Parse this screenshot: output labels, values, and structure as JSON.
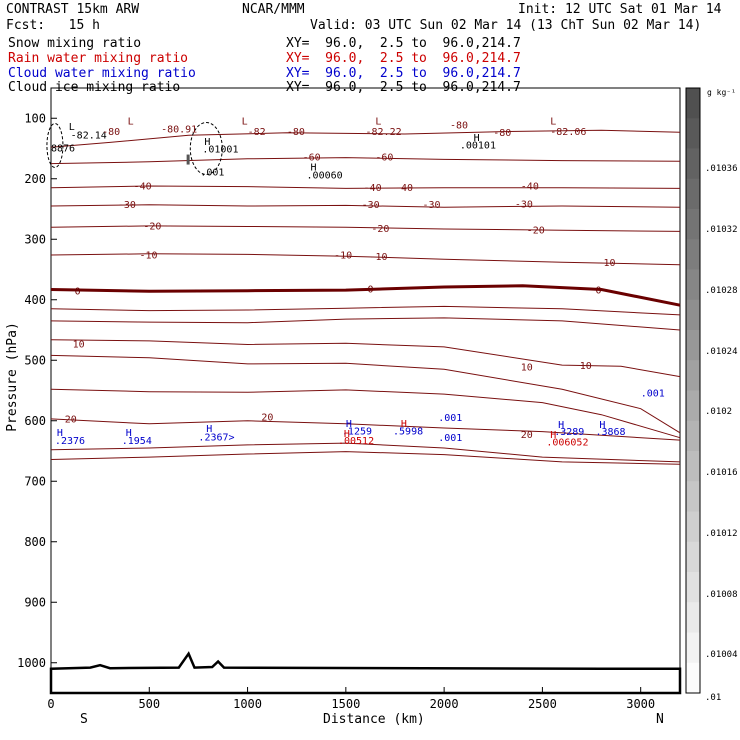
{
  "header": {
    "left1": "CONTRAST 15km ARW",
    "left2": "Fcst:   15 h",
    "center": "NCAR/MMM",
    "init": "Init: 12 UTC Sat 01 Mar 14",
    "valid": "Valid: 03 UTC Sun 02 Mar 14 (13 ChT Sun 02 Mar 14)"
  },
  "fields": [
    {
      "name": "Snow mixing ratio",
      "xy": "XY=  96.0,  2.5 to  96.0,214.7",
      "color": "#000000"
    },
    {
      "name": "Rain water mixing ratio",
      "xy": "XY=  96.0,  2.5 to  96.0,214.7",
      "color": "#cc0000"
    },
    {
      "name": "Cloud water mixing ratio",
      "xy": "XY=  96.0,  2.5 to  96.0,214.7",
      "color": "#0000cc"
    },
    {
      "name": "Cloud ice mixing ratio",
      "xy": "XY=  96.0,  2.5 to  96.0,214.7",
      "color": "#000000"
    }
  ],
  "chart_data": {
    "type": "contour",
    "xlabel": "Distance (km)",
    "ylabel": "Pressure (hPa)",
    "xlim": [
      0,
      3200
    ],
    "ylim": [
      1050,
      50
    ],
    "xticks": [
      0,
      500,
      1000,
      1500,
      2000,
      2500,
      3000
    ],
    "yticks": [
      100,
      200,
      300,
      400,
      500,
      600,
      700,
      800,
      900,
      1000
    ],
    "end_labels": {
      "left": "S",
      "right": "N"
    },
    "colorbar": {
      "unit": "g kg⁻¹",
      "labels": [
        ".01036",
        ".01032",
        ".01028",
        ".01024",
        ".0102",
        ".01016",
        ".01012",
        ".01008",
        ".01004",
        ".01"
      ]
    },
    "temperature_contours": [
      {
        "level": "-80",
        "color": "#7a1010",
        "points": [
          [
            0,
            148
          ],
          [
            300,
            140
          ],
          [
            700,
            128
          ],
          [
            1200,
            124
          ],
          [
            1800,
            126
          ],
          [
            2300,
            122
          ],
          [
            2800,
            120
          ],
          [
            3200,
            123
          ]
        ]
      },
      {
        "level": "-60",
        "color": "#7a1010",
        "points": [
          [
            0,
            175
          ],
          [
            500,
            172
          ],
          [
            1000,
            167
          ],
          [
            1500,
            165
          ],
          [
            2000,
            168
          ],
          [
            2600,
            170
          ],
          [
            3200,
            171
          ]
        ]
      },
      {
        "level": "-40",
        "color": "#7a1010",
        "points": [
          [
            0,
            215
          ],
          [
            500,
            212
          ],
          [
            1000,
            213
          ],
          [
            1500,
            216
          ],
          [
            2000,
            215
          ],
          [
            2600,
            215
          ],
          [
            3200,
            216
          ]
        ]
      },
      {
        "level": "-30",
        "color": "#7a1010",
        "points": [
          [
            0,
            245
          ],
          [
            500,
            243
          ],
          [
            1000,
            245
          ],
          [
            1500,
            244
          ],
          [
            2000,
            247
          ],
          [
            2600,
            245
          ],
          [
            3200,
            247
          ]
        ]
      },
      {
        "level": "-20",
        "color": "#7a1010",
        "points": [
          [
            0,
            280
          ],
          [
            500,
            278
          ],
          [
            1000,
            279
          ],
          [
            1500,
            280
          ],
          [
            2000,
            283
          ],
          [
            2600,
            285
          ],
          [
            3200,
            287
          ]
        ]
      },
      {
        "level": "-10",
        "color": "#7a1010",
        "points": [
          [
            0,
            326
          ],
          [
            500,
            324
          ],
          [
            1000,
            325
          ],
          [
            1500,
            328
          ],
          [
            2000,
            333
          ],
          [
            2600,
            338
          ],
          [
            3200,
            342
          ]
        ]
      },
      {
        "level": "0",
        "color": "#6a0000",
        "width": 3,
        "points": [
          [
            0,
            383
          ],
          [
            500,
            386
          ],
          [
            1000,
            385
          ],
          [
            1500,
            384
          ],
          [
            2000,
            379
          ],
          [
            2400,
            377
          ],
          [
            2800,
            383
          ],
          [
            3200,
            409
          ]
        ]
      },
      {
        "level": "",
        "color": "#7a1010",
        "points": [
          [
            0,
            415
          ],
          [
            500,
            418
          ],
          [
            1000,
            417
          ],
          [
            1500,
            414
          ],
          [
            2000,
            411
          ],
          [
            2600,
            415
          ],
          [
            3200,
            425
          ]
        ]
      },
      {
        "level": "",
        "color": "#7a1010",
        "points": [
          [
            0,
            435
          ],
          [
            500,
            437
          ],
          [
            1000,
            438
          ],
          [
            1500,
            432
          ],
          [
            2000,
            430
          ],
          [
            2600,
            435
          ],
          [
            3200,
            450
          ]
        ]
      },
      {
        "level": "10",
        "color": "#7a1010",
        "points": [
          [
            0,
            466
          ],
          [
            500,
            468
          ],
          [
            1000,
            474
          ],
          [
            1500,
            472
          ],
          [
            2000,
            478
          ],
          [
            2600,
            508
          ],
          [
            2900,
            510
          ],
          [
            3200,
            527
          ]
        ]
      },
      {
        "level": "",
        "color": "#7a1010",
        "points": [
          [
            0,
            492
          ],
          [
            500,
            496
          ],
          [
            1000,
            506
          ],
          [
            1500,
            505
          ],
          [
            2000,
            515
          ],
          [
            2600,
            548
          ],
          [
            3000,
            580
          ],
          [
            3200,
            620
          ]
        ]
      },
      {
        "level": "",
        "color": "#7a1010",
        "points": [
          [
            0,
            548
          ],
          [
            500,
            552
          ],
          [
            1000,
            553
          ],
          [
            1500,
            549
          ],
          [
            2000,
            556
          ],
          [
            2500,
            570
          ],
          [
            2800,
            590
          ],
          [
            3200,
            628
          ]
        ]
      },
      {
        "level": "20",
        "color": "#7a1010",
        "points": [
          [
            0,
            597
          ],
          [
            500,
            605
          ],
          [
            1000,
            600
          ],
          [
            1500,
            605
          ],
          [
            2000,
            612
          ],
          [
            2500,
            618
          ],
          [
            3200,
            632
          ]
        ]
      },
      {
        "level": "",
        "color": "#7a1010",
        "points": [
          [
            0,
            648
          ],
          [
            500,
            645
          ],
          [
            1000,
            640
          ],
          [
            1500,
            637
          ],
          [
            2000,
            645
          ],
          [
            2500,
            660
          ],
          [
            3200,
            668
          ]
        ]
      },
      {
        "level": "",
        "color": "#7a1010",
        "points": [
          [
            0,
            664
          ],
          [
            500,
            660
          ],
          [
            1000,
            655
          ],
          [
            1500,
            651
          ],
          [
            2000,
            656
          ],
          [
            2600,
            668
          ],
          [
            3200,
            672
          ]
        ]
      }
    ],
    "point_labels": [
      {
        "t": "L",
        "x": 90,
        "y": 113,
        "c": "#000000"
      },
      {
        "t": "-82.14",
        "x": 100,
        "y": 127,
        "c": "#000000"
      },
      {
        "t": "-80",
        "x": 260,
        "y": 121,
        "c": "#7a1010"
      },
      {
        "t": "L",
        "x": 390,
        "y": 104,
        "c": "#7a1010"
      },
      {
        "t": "-80.91",
        "x": 560,
        "y": 117,
        "c": "#7a1010"
      },
      {
        "t": "L",
        "x": 970,
        "y": 104,
        "c": "#7a1010"
      },
      {
        "t": "-82",
        "x": 1000,
        "y": 121,
        "c": "#7a1010"
      },
      {
        "t": "-80",
        "x": 1200,
        "y": 121,
        "c": "#7a1010"
      },
      {
        "t": "L",
        "x": 1650,
        "y": 104,
        "c": "#7a1010"
      },
      {
        "t": "-82.22",
        "x": 1600,
        "y": 121,
        "c": "#7a1010"
      },
      {
        "t": "-80",
        "x": 2030,
        "y": 110,
        "c": "#7a1010"
      },
      {
        "t": "-80",
        "x": 2250,
        "y": 123,
        "c": "#7a1010"
      },
      {
        "t": "L",
        "x": 2540,
        "y": 104,
        "c": "#7a1010"
      },
      {
        "t": "-82.06",
        "x": 2540,
        "y": 121,
        "c": "#7a1010"
      },
      {
        "t": "H",
        "x": 2150,
        "y": 131,
        "c": "#000000"
      },
      {
        "t": ".00101",
        "x": 2080,
        "y": 143,
        "c": "#000000"
      },
      {
        "t": "8876",
        "x": 0,
        "y": 148,
        "c": "#000000"
      },
      {
        "t": "H",
        "x": 780,
        "y": 138,
        "c": "#000000"
      },
      {
        "t": ".01001",
        "x": 770,
        "y": 150,
        "c": "#000000"
      },
      {
        "t": ".001",
        "x": 760,
        "y": 188,
        "c": "#000000"
      },
      {
        "t": "H",
        "x": 1320,
        "y": 180,
        "c": "#000000"
      },
      {
        "t": ".00060",
        "x": 1300,
        "y": 193,
        "c": "#000000"
      },
      {
        "t": "-60",
        "x": 1280,
        "y": 163,
        "c": "#7a1010"
      },
      {
        "t": "-60",
        "x": 1650,
        "y": 163,
        "c": "#7a1010"
      },
      {
        "t": "-40",
        "x": 420,
        "y": 211,
        "c": "#7a1010"
      },
      {
        "t": "-40",
        "x": 1590,
        "y": 214,
        "c": "#7a1010"
      },
      {
        "t": "-40",
        "x": 1750,
        "y": 214,
        "c": "#7a1010"
      },
      {
        "t": "-40",
        "x": 2390,
        "y": 211,
        "c": "#7a1010"
      },
      {
        "t": "-30",
        "x": 340,
        "y": 242,
        "c": "#7a1010"
      },
      {
        "t": "-30",
        "x": 1580,
        "y": 242,
        "c": "#7a1010"
      },
      {
        "t": "-30",
        "x": 1890,
        "y": 242,
        "c": "#7a1010"
      },
      {
        "t": "-30",
        "x": 2360,
        "y": 241,
        "c": "#7a1010"
      },
      {
        "t": "-20",
        "x": 470,
        "y": 277,
        "c": "#7a1010"
      },
      {
        "t": "-20",
        "x": 1630,
        "y": 281,
        "c": "#7a1010"
      },
      {
        "t": "-20",
        "x": 2420,
        "y": 284,
        "c": "#7a1010"
      },
      {
        "t": "-10",
        "x": 450,
        "y": 325,
        "c": "#7a1010"
      },
      {
        "t": "-10",
        "x": 1440,
        "y": 325,
        "c": "#7a1010"
      },
      {
        "t": "-10",
        "x": 1620,
        "y": 328,
        "c": "#7a1010"
      },
      {
        "t": "-10",
        "x": 2780,
        "y": 338,
        "c": "#7a1010"
      },
      {
        "t": "0",
        "x": 120,
        "y": 385,
        "c": "#6a0000"
      },
      {
        "t": "0",
        "x": 1610,
        "y": 381,
        "c": "#6a0000"
      },
      {
        "t": "0",
        "x": 2770,
        "y": 383,
        "c": "#6a0000"
      },
      {
        "t": "10",
        "x": 110,
        "y": 472,
        "c": "#7a1010"
      },
      {
        "t": "10",
        "x": 2390,
        "y": 510,
        "c": "#7a1010"
      },
      {
        "t": "10",
        "x": 2690,
        "y": 508,
        "c": "#7a1010"
      },
      {
        "t": "20",
        "x": 70,
        "y": 596,
        "c": "#7a1010"
      },
      {
        "t": "20",
        "x": 1070,
        "y": 593,
        "c": "#7a1010"
      },
      {
        "t": "20",
        "x": 2390,
        "y": 622,
        "c": "#7a1010"
      },
      {
        "t": "H",
        "x": 30,
        "y": 619,
        "c": "#0000cc"
      },
      {
        "t": ".2376",
        "x": 20,
        "y": 632,
        "c": "#0000cc"
      },
      {
        "t": "H",
        "x": 380,
        "y": 619,
        "c": "#0000cc"
      },
      {
        "t": ".1954",
        "x": 360,
        "y": 632,
        "c": "#0000cc"
      },
      {
        "t": "H",
        "x": 790,
        "y": 612,
        "c": "#0000cc"
      },
      {
        "t": ".2367>",
        "x": 750,
        "y": 626,
        "c": "#0000cc"
      },
      {
        "t": "H",
        "x": 1500,
        "y": 604,
        "c": "#0000cc"
      },
      {
        "t": ".1259",
        "x": 1480,
        "y": 616,
        "c": "#0000cc"
      },
      {
        "t": ".5998",
        "x": 1740,
        "y": 616,
        "c": "#0000cc"
      },
      {
        "t": ".001",
        "x": 1970,
        "y": 594,
        "c": "#0000cc"
      },
      {
        "t": ".001",
        "x": 1970,
        "y": 627,
        "c": "#0000cc"
      },
      {
        "t": "H",
        "x": 2580,
        "y": 605,
        "c": "#0000cc"
      },
      {
        "t": ".3289",
        "x": 2560,
        "y": 617,
        "c": "#0000cc"
      },
      {
        "t": "H",
        "x": 2790,
        "y": 605,
        "c": "#0000cc"
      },
      {
        "t": ".3868",
        "x": 2770,
        "y": 617,
        "c": "#0000cc"
      },
      {
        "t": ".001",
        "x": 3000,
        "y": 553,
        "c": "#0000cc"
      },
      {
        "t": "H",
        "x": 1490,
        "y": 620,
        "c": "#cc0000"
      },
      {
        "t": ".00512",
        "x": 1460,
        "y": 632,
        "c": "#cc0000"
      },
      {
        "t": "H",
        "x": 1780,
        "y": 604,
        "c": "#cc0000"
      },
      {
        "t": "H",
        "x": 2540,
        "y": 622,
        "c": "#cc0000"
      },
      {
        "t": ".006052",
        "x": 2520,
        "y": 634,
        "c": "#cc0000"
      }
    ]
  }
}
